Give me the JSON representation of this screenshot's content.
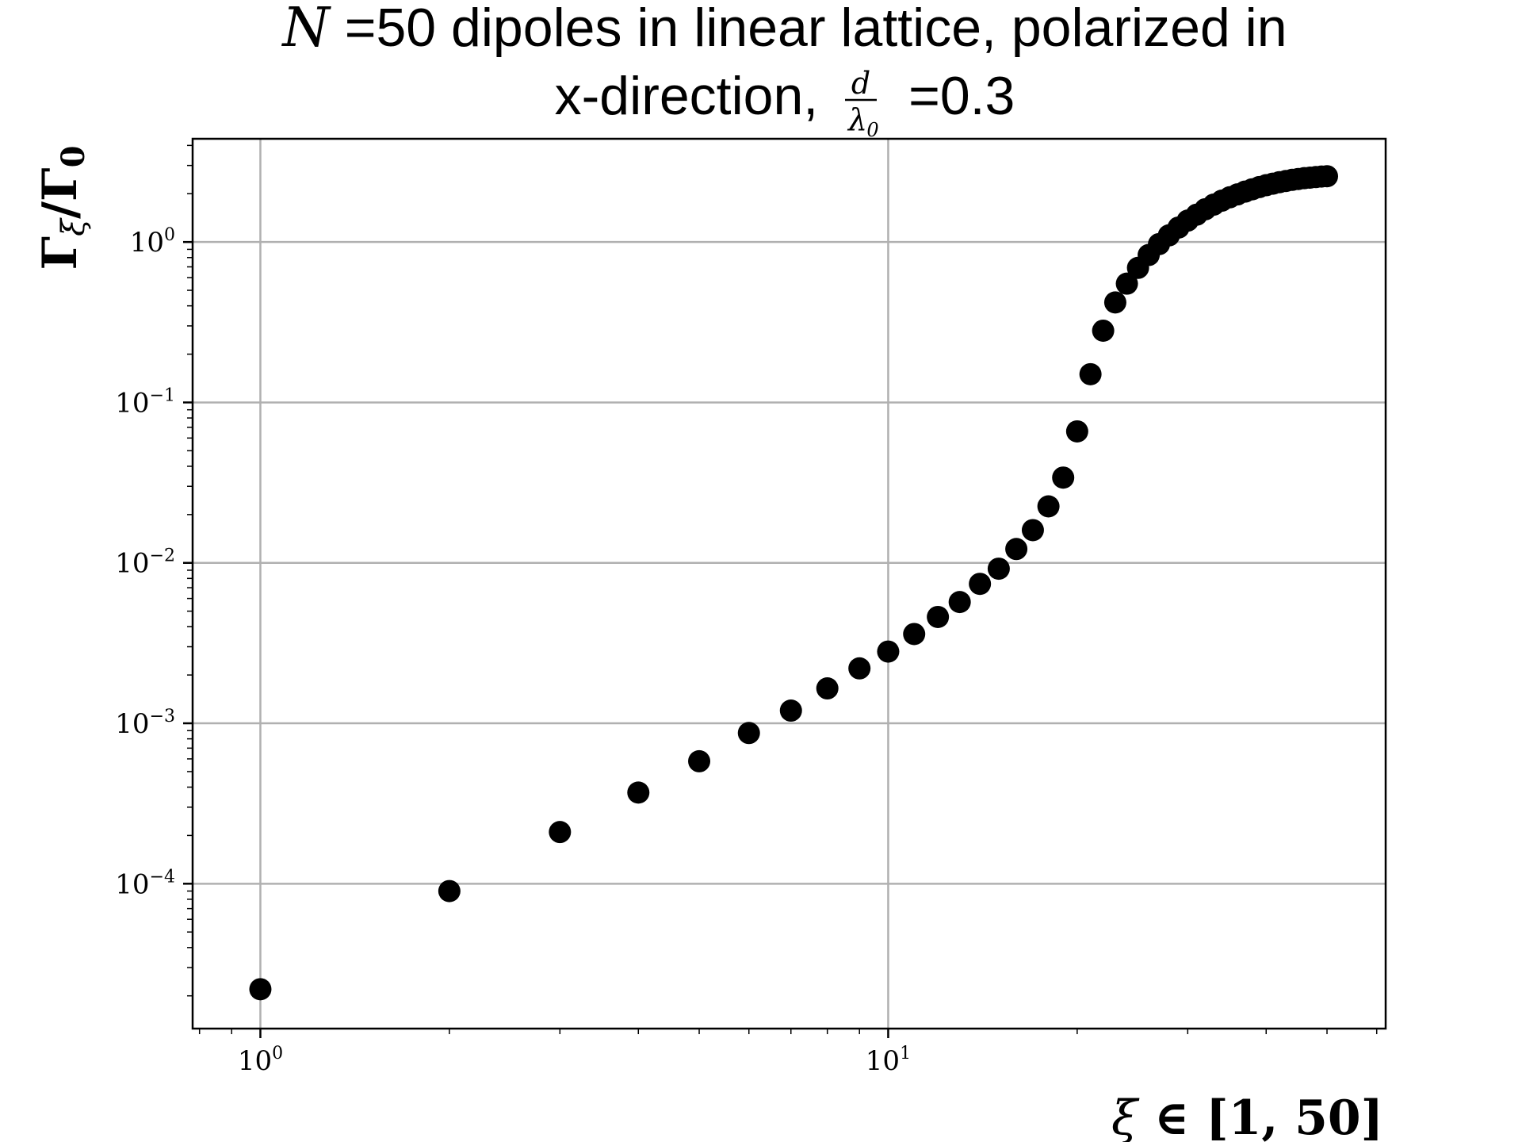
{
  "chart_data": {
    "type": "scatter",
    "title_line1_prefix": "N",
    "title_line1_rest": " =50 dipoles in linear lattice, polarized in",
    "title_line2_prefix": "x-direction, ",
    "title_frac_num": "d",
    "title_frac_den": "λ",
    "title_frac_den_sub": "0",
    "title_line2_suffix": " =0.3",
    "xlabel_var": "ξ",
    "xlabel_rest": " ∈ [1, 50]",
    "ylabel_main": "Γ",
    "ylabel_sub": "ξ",
    "ylabel_slash": "/Γ",
    "ylabel_sub0": "0",
    "x_scale": "log",
    "y_scale": "log",
    "xlim": [
      0.78,
      62
    ],
    "ylim": [
      1.25e-05,
      4.4
    ],
    "grid": true,
    "marker_color": "#000000",
    "x_ticks": [
      {
        "value": 1,
        "base": "10",
        "exp": "0"
      },
      {
        "value": 10,
        "base": "10",
        "exp": "1"
      }
    ],
    "y_ticks": [
      {
        "value": 1,
        "base": "10",
        "exp": "0"
      },
      {
        "value": 0.1,
        "base": "10",
        "exp": "−1"
      },
      {
        "value": 0.01,
        "base": "10",
        "exp": "−2"
      },
      {
        "value": 0.001,
        "base": "10",
        "exp": "−3"
      },
      {
        "value": 0.0001,
        "base": "10",
        "exp": "−4"
      }
    ],
    "x": [
      1,
      2,
      3,
      4,
      5,
      6,
      7,
      8,
      9,
      10,
      11,
      12,
      13,
      14,
      15,
      16,
      17,
      18,
      19,
      20,
      21,
      22,
      23,
      24,
      25,
      26,
      27,
      28,
      29,
      30,
      31,
      32,
      33,
      34,
      35,
      36,
      37,
      38,
      39,
      40,
      41,
      42,
      43,
      44,
      45,
      46,
      47,
      48,
      49,
      50
    ],
    "y": [
      2.2e-05,
      9e-05,
      0.00021,
      0.00037,
      0.00058,
      0.00087,
      0.0012,
      0.00165,
      0.0022,
      0.0028,
      0.0036,
      0.0046,
      0.0057,
      0.0074,
      0.0092,
      0.0122,
      0.016,
      0.0225,
      0.034,
      0.066,
      0.15,
      0.28,
      0.42,
      0.55,
      0.69,
      0.83,
      0.97,
      1.1,
      1.23,
      1.36,
      1.48,
      1.6,
      1.71,
      1.81,
      1.9,
      1.98,
      2.06,
      2.13,
      2.2,
      2.26,
      2.31,
      2.36,
      2.4,
      2.44,
      2.47,
      2.5,
      2.52,
      2.54,
      2.56,
      2.57
    ]
  }
}
